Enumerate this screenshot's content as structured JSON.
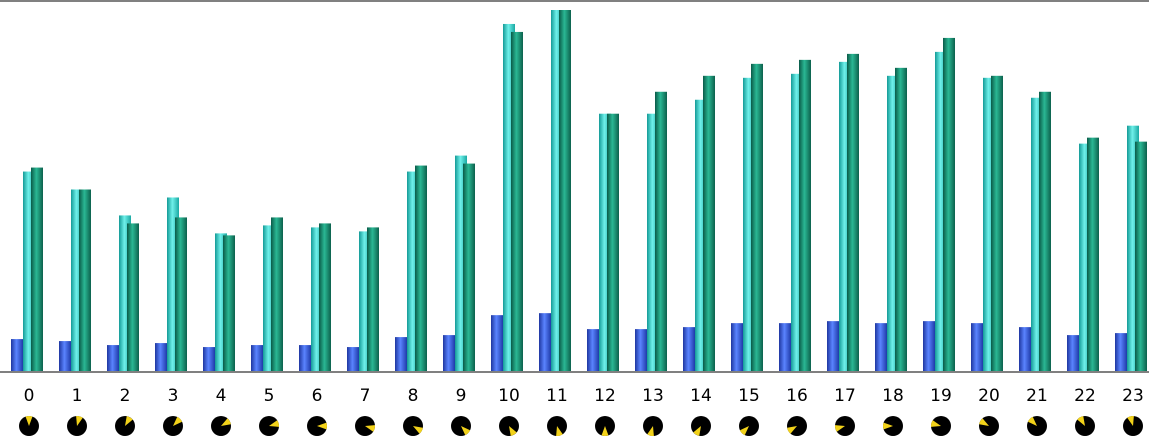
{
  "chart_data": {
    "type": "bar",
    "categories": [
      "0",
      "1",
      "2",
      "3",
      "4",
      "5",
      "6",
      "7",
      "8",
      "9",
      "10",
      "11",
      "12",
      "13",
      "14",
      "15",
      "16",
      "17",
      "18",
      "19",
      "20",
      "21",
      "22",
      "23"
    ],
    "series": [
      {
        "values": [
          32,
          30,
          26,
          28,
          24,
          26,
          26,
          24,
          34,
          36,
          56,
          58,
          42,
          42,
          44,
          48,
          48,
          50,
          48,
          50,
          48,
          44,
          36,
          38
        ]
      },
      {
        "values": [
          200,
          182,
          156,
          174,
          138,
          146,
          144,
          140,
          200,
          216,
          348,
          362,
          258,
          258,
          272,
          294,
          298,
          310,
          296,
          320,
          294,
          274,
          228,
          246
        ]
      },
      {
        "values": [
          204,
          182,
          148,
          154,
          136,
          154,
          148,
          144,
          206,
          208,
          340,
          362,
          258,
          280,
          296,
          308,
          312,
          318,
          304,
          334,
          296,
          280,
          234,
          230
        ]
      }
    ],
    "ylim": [
      0,
      362
    ],
    "colors": {
      "series1": "#2a4fc8",
      "series2": "#2ec8c0",
      "series3": "#128a70"
    },
    "hour_icons": [
      "clock-icon-0",
      "clock-icon-1",
      "clock-icon-2",
      "clock-icon-3",
      "clock-icon-4",
      "clock-icon-5",
      "clock-icon-6",
      "clock-icon-7",
      "clock-icon-8",
      "clock-icon-9",
      "clock-icon-10",
      "clock-icon-11",
      "clock-icon-12",
      "clock-icon-13",
      "clock-icon-14",
      "clock-icon-15",
      "clock-icon-16",
      "clock-icon-17",
      "clock-icon-18",
      "clock-icon-19",
      "clock-icon-20",
      "clock-icon-21",
      "clock-icon-22",
      "clock-icon-23"
    ]
  }
}
